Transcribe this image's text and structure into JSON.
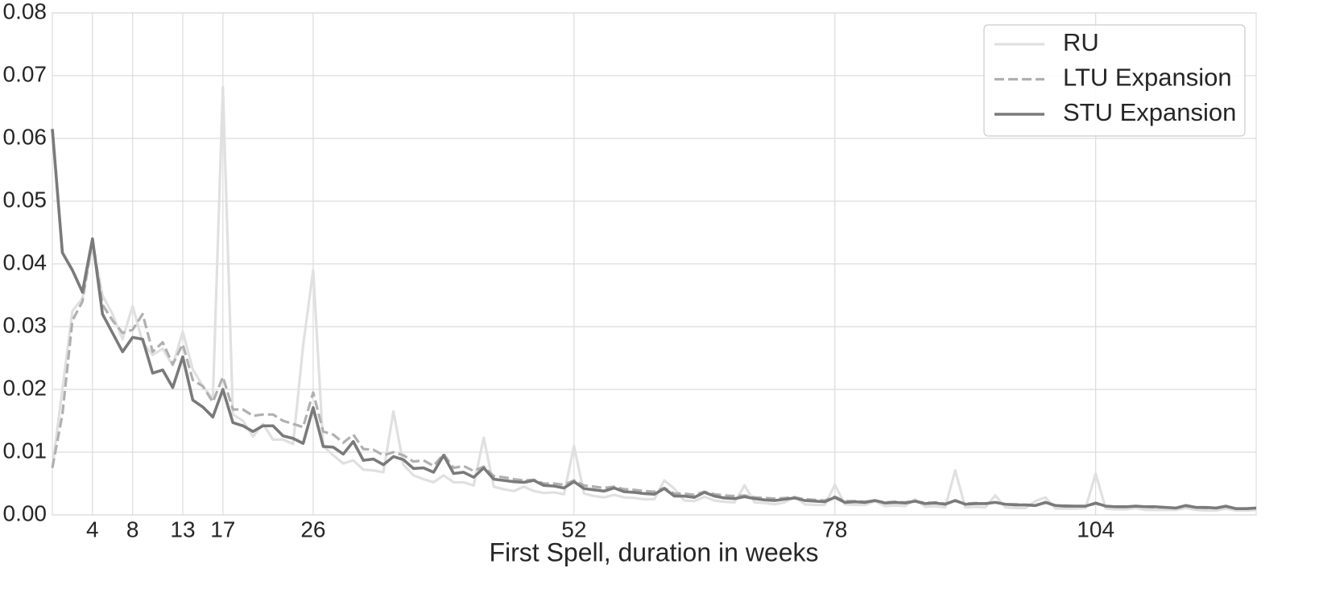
{
  "chart_data": {
    "type": "line",
    "xlabel": "First Spell, duration in weeks",
    "x": [
      0,
      1,
      2,
      3,
      4,
      5,
      6,
      7,
      8,
      9,
      10,
      11,
      12,
      13,
      14,
      15,
      16,
      17,
      18,
      19,
      20,
      21,
      22,
      23,
      24,
      25,
      26,
      27,
      28,
      29,
      30,
      31,
      32,
      33,
      34,
      35,
      36,
      37,
      38,
      39,
      40,
      41,
      42,
      43,
      44,
      45,
      46,
      47,
      48,
      49,
      50,
      51,
      52,
      53,
      54,
      55,
      56,
      57,
      58,
      59,
      60,
      61,
      62,
      63,
      64,
      65,
      66,
      67,
      68,
      69,
      70,
      71,
      72,
      73,
      74,
      75,
      76,
      77,
      78,
      79,
      80,
      81,
      82,
      83,
      84,
      85,
      86,
      87,
      88,
      89,
      90,
      91,
      92,
      93,
      94,
      95,
      96,
      97,
      98,
      99,
      100,
      101,
      102,
      103,
      104,
      105,
      106,
      107,
      108,
      109,
      110,
      111,
      112,
      113,
      114,
      115,
      116,
      117,
      118,
      119,
      120
    ],
    "series": [
      {
        "name": "RU",
        "color": "#e0e0e0",
        "dashed": false,
        "values": [
          0.0075,
          0.02,
          0.0325,
          0.0345,
          0.043,
          0.035,
          0.032,
          0.028,
          0.0333,
          0.0275,
          0.0255,
          0.0265,
          0.0238,
          0.0292,
          0.0232,
          0.0205,
          0.0185,
          0.0682,
          0.016,
          0.015,
          0.0125,
          0.0145,
          0.012,
          0.012,
          0.0113,
          0.027,
          0.039,
          0.011,
          0.0095,
          0.0082,
          0.0087,
          0.0072,
          0.0071,
          0.0068,
          0.0165,
          0.008,
          0.0063,
          0.0057,
          0.0052,
          0.0063,
          0.0052,
          0.0052,
          0.0047,
          0.0123,
          0.0045,
          0.0041,
          0.0038,
          0.0045,
          0.0038,
          0.0035,
          0.0036,
          0.0033,
          0.011,
          0.0034,
          0.003,
          0.0028,
          0.0032,
          0.0028,
          0.0027,
          0.0025,
          0.0025,
          0.0055,
          0.0042,
          0.0023,
          0.0022,
          0.0029,
          0.0023,
          0.0021,
          0.002,
          0.0047,
          0.002,
          0.0019,
          0.0017,
          0.002,
          0.0029,
          0.0017,
          0.0016,
          0.0016,
          0.0048,
          0.0017,
          0.0016,
          0.0016,
          0.0022,
          0.0014,
          0.0015,
          0.0014,
          0.0025,
          0.0013,
          0.0014,
          0.0012,
          0.0071,
          0.0012,
          0.0013,
          0.0012,
          0.0031,
          0.0012,
          0.0011,
          0.0011,
          0.0022,
          0.0028,
          0.001,
          0.001,
          0.001,
          0.0011,
          0.0066,
          0.001,
          0.0009,
          0.0009,
          0.0011,
          0.0008,
          0.0008,
          0.0008,
          0.0008,
          0.0011,
          0.0008,
          0.0007,
          0.0007,
          0.001,
          0.0007,
          0.0007,
          0.0008
        ]
      },
      {
        "name": "LTU Expansion",
        "color": "#b0b0b0",
        "dashed": true,
        "values": [
          0.0075,
          0.016,
          0.031,
          0.034,
          0.044,
          0.0335,
          0.031,
          0.029,
          0.0295,
          0.032,
          0.026,
          0.0275,
          0.024,
          0.0272,
          0.0215,
          0.0205,
          0.018,
          0.022,
          0.0168,
          0.0168,
          0.0158,
          0.016,
          0.016,
          0.015,
          0.0145,
          0.014,
          0.0195,
          0.0133,
          0.0128,
          0.0115,
          0.0128,
          0.0105,
          0.0104,
          0.0095,
          0.01,
          0.0095,
          0.0085,
          0.0087,
          0.0078,
          0.0097,
          0.0075,
          0.0078,
          0.007,
          0.0077,
          0.0062,
          0.006,
          0.0057,
          0.0055,
          0.0056,
          0.005,
          0.005,
          0.0048,
          0.0055,
          0.0047,
          0.0045,
          0.0043,
          0.0045,
          0.0041,
          0.004,
          0.0038,
          0.0037,
          0.0043,
          0.0034,
          0.0034,
          0.0032,
          0.0037,
          0.0033,
          0.0031,
          0.003,
          0.0031,
          0.0028,
          0.0027,
          0.0026,
          0.0027,
          0.0028,
          0.0025,
          0.0024,
          0.0023,
          0.0029,
          0.0022,
          0.0022,
          0.0021,
          0.0023,
          0.002,
          0.0021,
          0.002,
          0.0022,
          0.0019,
          0.002,
          0.0018,
          0.0022,
          0.0018,
          0.0019,
          0.0018,
          0.002,
          0.0017,
          0.0017,
          0.0016,
          0.0016,
          0.0019,
          0.0015,
          0.0015,
          0.0014,
          0.0014,
          0.0018,
          0.0014,
          0.0013,
          0.0013,
          0.0014,
          0.0013,
          0.0012,
          0.0012,
          0.0011,
          0.0014,
          0.0012,
          0.0011,
          0.0011,
          0.0013,
          0.001,
          0.001,
          0.0011
        ]
      },
      {
        "name": "STU Expansion",
        "color": "#7a7a7a",
        "dashed": false,
        "values": [
          0.0615,
          0.0418,
          0.039,
          0.0355,
          0.044,
          0.032,
          0.029,
          0.026,
          0.0283,
          0.028,
          0.0226,
          0.0231,
          0.0203,
          0.0252,
          0.0183,
          0.0172,
          0.0156,
          0.02,
          0.0147,
          0.0142,
          0.0133,
          0.0142,
          0.0142,
          0.0126,
          0.0122,
          0.0114,
          0.0171,
          0.0109,
          0.0108,
          0.0097,
          0.0117,
          0.0087,
          0.0089,
          0.008,
          0.0093,
          0.0088,
          0.0074,
          0.0075,
          0.0068,
          0.0095,
          0.0066,
          0.0068,
          0.006,
          0.0075,
          0.0057,
          0.0055,
          0.0053,
          0.0052,
          0.0055,
          0.0047,
          0.0046,
          0.0043,
          0.0053,
          0.0042,
          0.004,
          0.0038,
          0.0043,
          0.0037,
          0.0036,
          0.0034,
          0.0033,
          0.0042,
          0.003,
          0.003,
          0.0028,
          0.0036,
          0.003,
          0.0027,
          0.0026,
          0.0029,
          0.0026,
          0.0024,
          0.0023,
          0.0025,
          0.0027,
          0.0023,
          0.0022,
          0.0021,
          0.0028,
          0.002,
          0.0021,
          0.002,
          0.0023,
          0.0019,
          0.002,
          0.0019,
          0.0022,
          0.0018,
          0.0019,
          0.0017,
          0.0023,
          0.0017,
          0.0018,
          0.0018,
          0.002,
          0.0017,
          0.0016,
          0.0016,
          0.0015,
          0.002,
          0.0015,
          0.0014,
          0.0014,
          0.0014,
          0.0019,
          0.0014,
          0.0013,
          0.0013,
          0.0014,
          0.0013,
          0.0013,
          0.0012,
          0.0011,
          0.0015,
          0.0012,
          0.0012,
          0.0011,
          0.0014,
          0.001,
          0.001,
          0.0011
        ]
      }
    ],
    "xlim": [
      0,
      120
    ],
    "xticks": [
      4,
      8,
      13,
      17,
      26,
      52,
      78,
      104
    ],
    "ylim": [
      0,
      0.08
    ],
    "yticks": [
      {
        "value": 0,
        "label": "0.00"
      },
      0.01,
      0.02,
      0.03,
      0.04,
      0.05,
      0.06,
      0.07,
      0.08
    ],
    "grid": true,
    "legend": "upper right"
  }
}
